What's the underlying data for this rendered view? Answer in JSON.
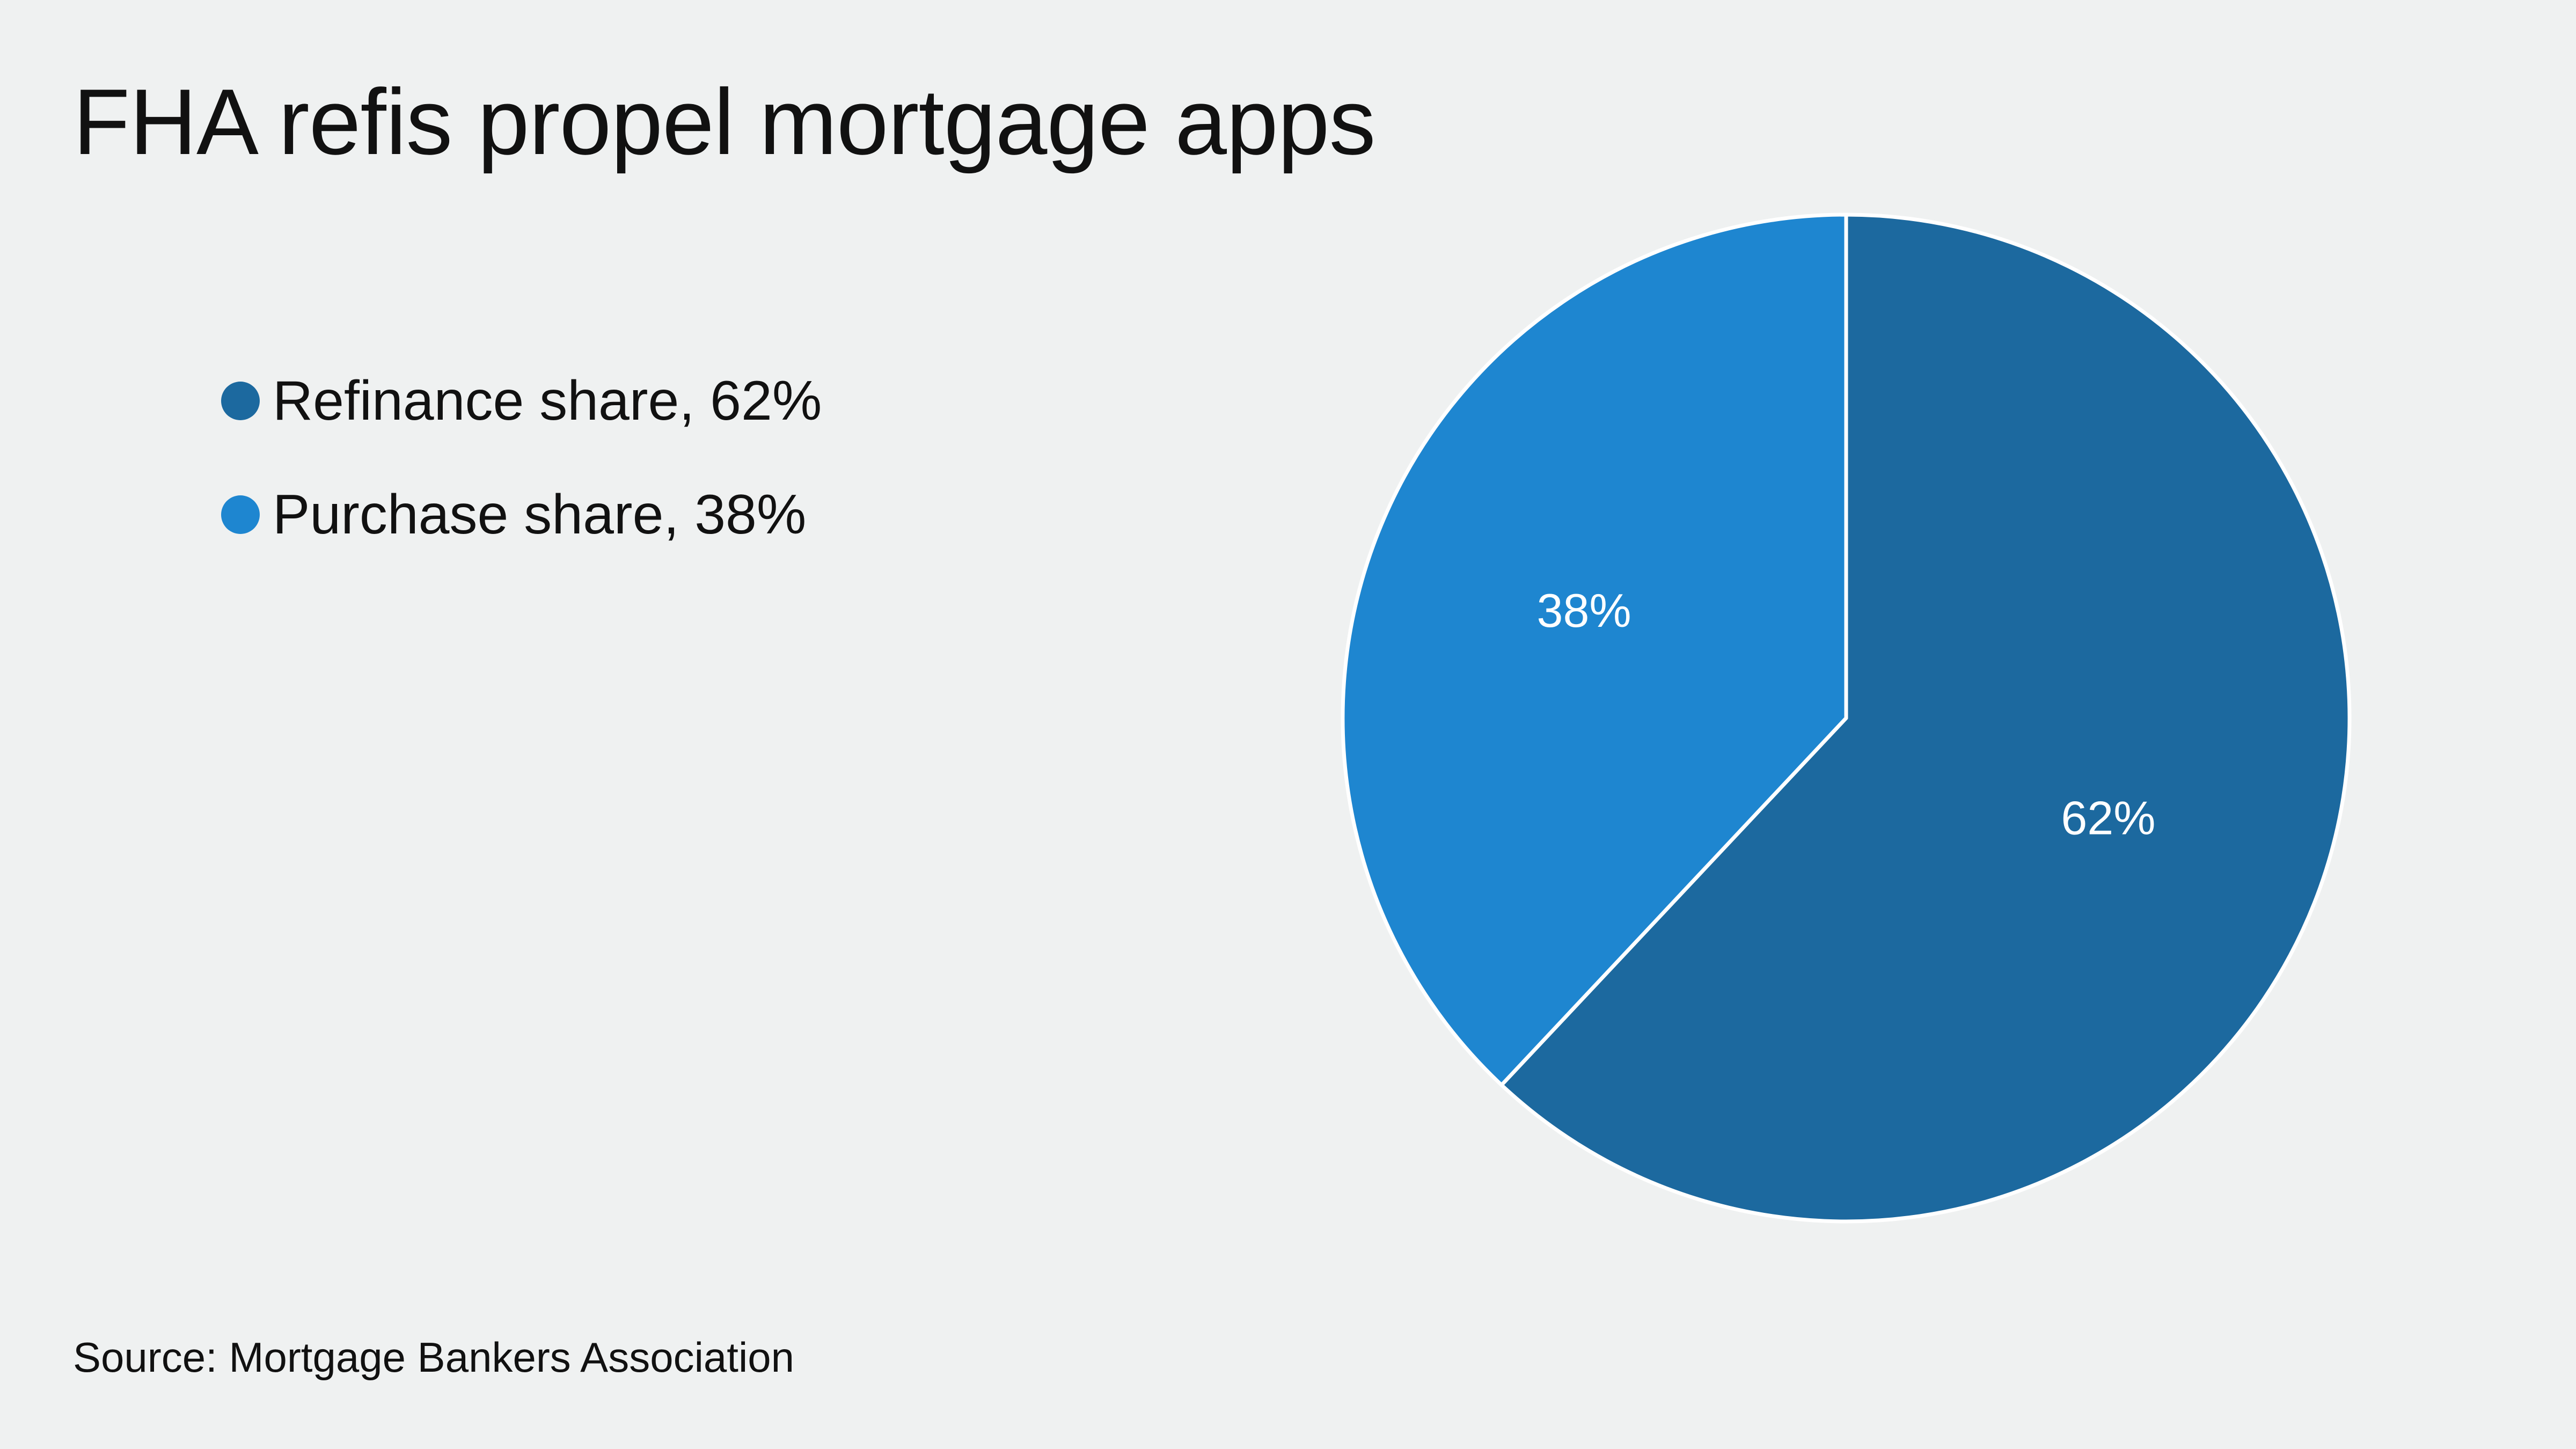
{
  "title": "FHA refis propel mortgage apps",
  "source": "Source: Mortgage Bankers Association",
  "chart_data": {
    "type": "pie",
    "title": "FHA refis propel mortgage apps",
    "start_angle_deg": 0,
    "direction": "clockwise",
    "slices": [
      {
        "name": "Refinance share",
        "value": 62,
        "label": "62%",
        "legend": "Refinance share, 62%",
        "color": "#1c699f"
      },
      {
        "name": "Purchase share",
        "value": 38,
        "label": "38%",
        "legend": "Purchase share, 38%",
        "color": "#1e86d0"
      }
    ],
    "legend_placement": "left"
  }
}
